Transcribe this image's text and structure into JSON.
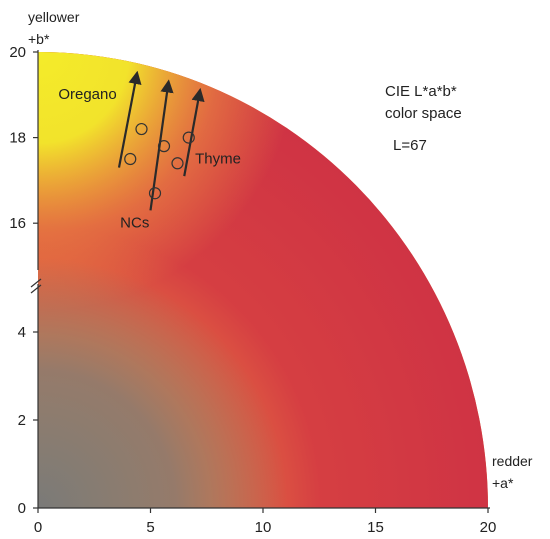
{
  "chart_data": {
    "type": "scatter",
    "title": "CIE L*a*b*",
    "subtitle": "color space",
    "lightness_label": "L=67",
    "x_axis": {
      "range": [
        0,
        20
      ],
      "ticks": [
        0,
        5,
        10,
        15,
        20
      ],
      "tick_labels": [
        "0",
        "5",
        "10",
        "15",
        "20"
      ],
      "end_label_line1": "redder",
      "end_label_line2": "+a*"
    },
    "y_axis": {
      "broken": true,
      "lower_range": [
        0,
        5
      ],
      "upper_range": [
        15,
        20
      ],
      "ticks": [
        0,
        2,
        4,
        16,
        18,
        20
      ],
      "tick_labels": [
        "0",
        "2",
        "4",
        "16",
        "18",
        "20"
      ],
      "end_label_line1": "yellower",
      "end_label_line2": "+b*"
    },
    "background": {
      "shape": "quarter-disc",
      "radius": 20,
      "colors": {
        "neutral": "#7a7a78",
        "yellow": "#f4ec2a",
        "orange": "#ef9540",
        "red": "#d43a42",
        "deep_red": "#cf3344"
      }
    },
    "points": [
      {
        "x": 4.6,
        "y": 18.2
      },
      {
        "x": 4.1,
        "y": 17.5
      },
      {
        "x": 5.6,
        "y": 17.8
      },
      {
        "x": 6.2,
        "y": 17.4
      },
      {
        "x": 6.7,
        "y": 18.0
      },
      {
        "x": 5.2,
        "y": 16.7
      }
    ],
    "arrows": [
      {
        "from": [
          3.6,
          17.3
        ],
        "to": [
          4.4,
          19.5
        ]
      },
      {
        "from": [
          5.0,
          16.3
        ],
        "to": [
          5.8,
          19.3
        ]
      },
      {
        "from": [
          6.5,
          17.1
        ],
        "to": [
          7.2,
          19.1
        ]
      }
    ],
    "annotations": [
      {
        "text": "Oregano",
        "x": 2.2,
        "y": 18.9
      },
      {
        "text": "Thyme",
        "x": 8.0,
        "y": 17.4
      },
      {
        "text": "NCs",
        "x": 4.3,
        "y": 15.9
      }
    ]
  }
}
